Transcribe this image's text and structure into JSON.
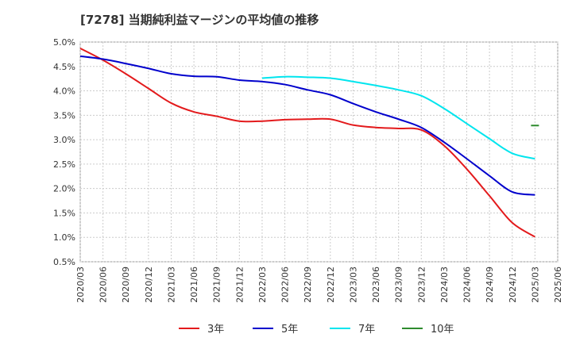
{
  "chart_data": {
    "type": "line",
    "title": "[7278]  当期純利益マージンの平均値の推移",
    "xlabel": "",
    "ylabel": "",
    "ylim": [
      0.5,
      5.0
    ],
    "y_ticks": [
      "0.5%",
      "1.0%",
      "1.5%",
      "2.0%",
      "2.5%",
      "3.0%",
      "3.5%",
      "4.0%",
      "4.5%",
      "5.0%"
    ],
    "y_tick_values": [
      0.5,
      1.0,
      1.5,
      2.0,
      2.5,
      3.0,
      3.5,
      4.0,
      4.5,
      5.0
    ],
    "x_ticks": [
      "2020/03",
      "2020/06",
      "2020/09",
      "2020/12",
      "2021/03",
      "2021/06",
      "2021/09",
      "2021/12",
      "2022/03",
      "2022/06",
      "2022/09",
      "2022/12",
      "2023/03",
      "2023/06",
      "2023/09",
      "2023/12",
      "2024/03",
      "2024/06",
      "2024/09",
      "2024/12",
      "2025/03",
      "2025/06"
    ],
    "grid": true,
    "legend_position": "bottom",
    "series": [
      {
        "name": "3年",
        "color": "#e31a1c",
        "values": [
          4.87,
          4.63,
          4.35,
          4.05,
          3.75,
          3.57,
          3.48,
          3.38,
          3.38,
          3.41,
          3.42,
          3.42,
          3.3,
          3.25,
          3.23,
          3.2,
          2.88,
          2.4,
          1.85,
          1.3,
          1.01,
          null
        ]
      },
      {
        "name": "5年",
        "color": "#0000cc",
        "values": [
          4.71,
          4.65,
          4.56,
          4.46,
          4.35,
          4.3,
          4.29,
          4.22,
          4.19,
          4.13,
          4.02,
          3.92,
          3.74,
          3.57,
          3.42,
          3.25,
          2.95,
          2.61,
          2.26,
          1.93,
          1.87,
          null
        ]
      },
      {
        "name": "7年",
        "color": "#00e5ee",
        "values": [
          null,
          null,
          null,
          null,
          null,
          null,
          null,
          null,
          4.26,
          4.29,
          4.28,
          4.26,
          4.19,
          4.11,
          4.02,
          3.9,
          3.64,
          3.33,
          3.02,
          2.72,
          2.61,
          null
        ]
      },
      {
        "name": "10年",
        "color": "#2e8b2e",
        "values": [
          null,
          null,
          null,
          null,
          null,
          null,
          null,
          null,
          null,
          null,
          null,
          null,
          null,
          null,
          null,
          null,
          null,
          null,
          null,
          null,
          3.29,
          null
        ]
      }
    ]
  }
}
